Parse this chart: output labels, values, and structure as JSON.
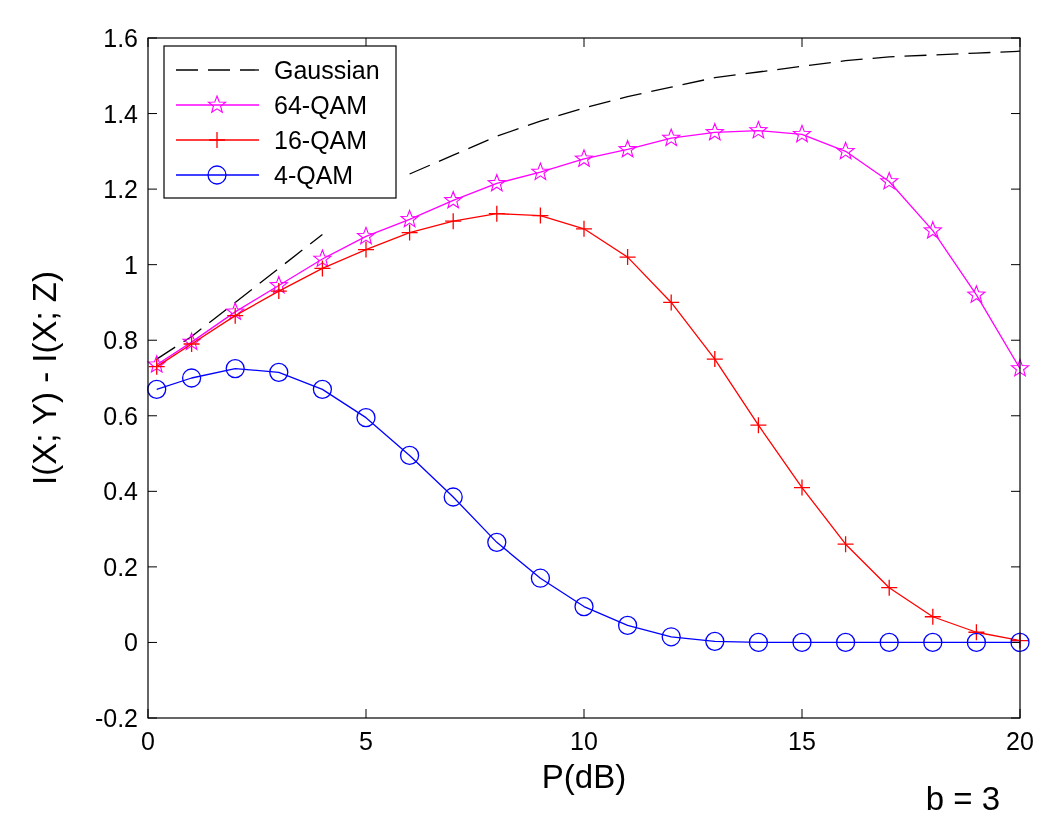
{
  "chart_data": {
    "type": "line",
    "xlabel": "P(dB)",
    "ylabel": "I(X; Y) - I(X; Z)",
    "annotations": [
      "b = 3"
    ],
    "x": [
      0.2,
      1,
      2,
      3,
      4,
      5,
      6,
      7,
      8,
      9,
      10,
      11,
      12,
      13,
      14,
      15,
      16,
      17,
      18,
      19,
      20
    ],
    "xlim": [
      0,
      20
    ],
    "xticks": [
      0,
      5,
      10,
      15,
      20
    ],
    "ylim": [
      -0.2,
      1.6
    ],
    "yticks": [
      -0.2,
      0,
      0.2,
      0.4,
      0.6,
      0.8,
      1,
      1.2,
      1.4,
      1.6
    ],
    "grid": false,
    "legend": "top left",
    "series": [
      {
        "name": "Gaussian",
        "color": "#000000",
        "marker": "none",
        "line_style": "dashed",
        "values": [
          0.75,
          0.81,
          0.9,
          0.99,
          1.08,
          null,
          1.24,
          1.29,
          1.34,
          1.38,
          1.415,
          1.445,
          1.47,
          1.495,
          1.51,
          1.525,
          1.54,
          1.55,
          1.555,
          1.56,
          1.565
        ]
      },
      {
        "name": "64-QAM",
        "color": "#ff00ff",
        "marker": "star",
        "line_style": "solid",
        "values": [
          0.735,
          0.795,
          0.875,
          0.945,
          1.015,
          1.075,
          1.12,
          1.17,
          1.215,
          1.245,
          1.28,
          1.305,
          1.335,
          1.35,
          1.355,
          1.345,
          1.3,
          1.22,
          1.09,
          0.92,
          0.725
        ]
      },
      {
        "name": "16-QAM",
        "color": "#ff0000",
        "marker": "cross",
        "line_style": "solid",
        "values": [
          0.73,
          0.79,
          0.865,
          0.93,
          0.99,
          1.04,
          1.085,
          1.115,
          1.135,
          1.13,
          1.095,
          1.02,
          0.9,
          0.75,
          0.575,
          0.41,
          0.26,
          0.145,
          0.068,
          0.027,
          0.005
        ]
      },
      {
        "name": "4-QAM",
        "color": "#0000ff",
        "marker": "circle",
        "line_style": "solid",
        "values": [
          0.67,
          0.7,
          0.725,
          0.715,
          0.67,
          0.595,
          0.495,
          0.385,
          0.265,
          0.17,
          0.095,
          0.045,
          0.015,
          0.003,
          0,
          0,
          0,
          0,
          0,
          0,
          0
        ]
      }
    ]
  }
}
